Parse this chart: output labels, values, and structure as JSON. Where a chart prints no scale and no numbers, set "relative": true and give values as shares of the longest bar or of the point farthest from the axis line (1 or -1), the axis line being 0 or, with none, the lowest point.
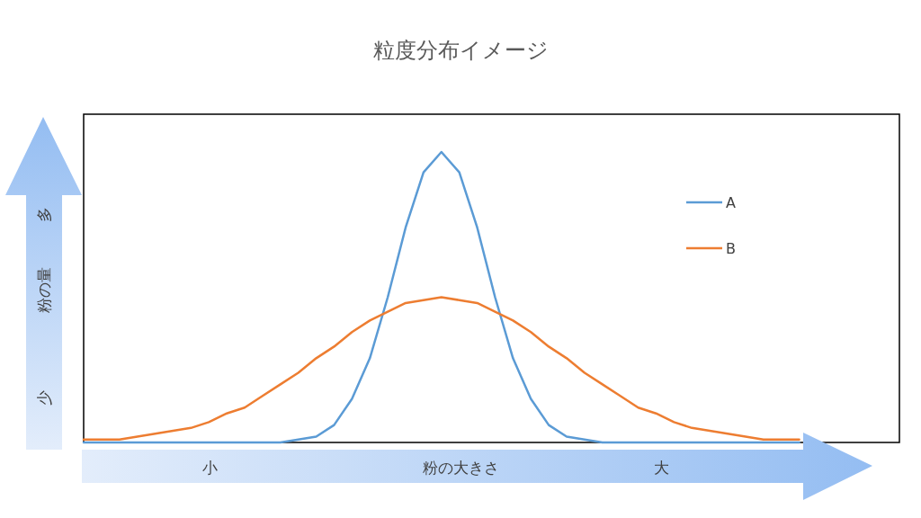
{
  "chart_data": {
    "type": "line",
    "title": "粒度分布イメージ",
    "xlabel": "粉の大きさ",
    "ylabel": "粉の量",
    "annotations": [
      "小",
      "大",
      "少",
      "多"
    ],
    "relative": true,
    "legend": "top right",
    "categories": [
      null,
      null,
      null,
      null,
      null,
      null,
      null,
      null,
      null,
      null,
      null,
      null,
      null,
      null,
      null,
      null,
      null,
      null,
      null,
      null,
      null,
      null,
      null,
      null,
      null,
      null,
      null,
      null,
      null,
      null,
      null,
      null,
      null,
      null,
      null,
      null,
      null,
      null,
      null,
      null,
      null,
      null,
      null,
      null,
      null,
      null
    ],
    "series": [
      {
        "name": "A",
        "color": "#5b9bd5",
        "values": [
          0,
          0,
          0,
          0,
          0,
          0,
          0,
          0,
          0,
          0,
          0,
          0,
          0.01,
          0.02,
          0.06,
          0.15,
          0.29,
          0.5,
          0.74,
          0.93,
          1,
          0.93,
          0.74,
          0.5,
          0.29,
          0.15,
          0.06,
          0.02,
          0.01,
          0,
          0,
          0,
          0,
          0,
          0,
          0,
          0,
          0,
          0,
          0,
          0,
          null,
          null,
          null,
          null,
          null
        ]
      },
      {
        "name": "B",
        "color": "#ed7d31",
        "values": [
          0.01,
          0.01,
          0.01,
          0.02,
          0.03,
          0.04,
          0.05,
          0.07,
          0.1,
          0.12,
          0.16,
          0.2,
          0.24,
          0.29,
          0.33,
          0.38,
          0.42,
          0.45,
          0.48,
          0.49,
          0.5,
          0.49,
          0.48,
          0.45,
          0.42,
          0.38,
          0.33,
          0.29,
          0.24,
          0.2,
          0.16,
          0.12,
          0.1,
          0.07,
          0.05,
          0.04,
          0.03,
          0.02,
          0.01,
          0.01,
          0.01,
          null,
          null,
          null,
          null,
          null
        ]
      }
    ]
  }
}
